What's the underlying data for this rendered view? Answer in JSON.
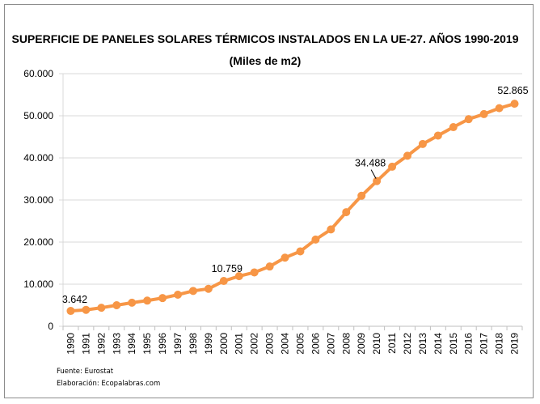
{
  "chart_data": {
    "type": "line",
    "title": "SUPERFICIE DE PANELES SOLARES TÉRMICOS INSTALADOS EN LA UE-27. AÑOS 1990-2019",
    "subtitle": "(Miles de m2)",
    "xlabel": "",
    "ylabel": "",
    "ylim": [
      0,
      60000
    ],
    "yticks": [
      0,
      10000,
      20000,
      30000,
      40000,
      50000,
      60000
    ],
    "ytick_labels": [
      "0",
      "10.000",
      "20.000",
      "30.000",
      "40.000",
      "50.000",
      "60.000"
    ],
    "grid": true,
    "legend": "none",
    "categories": [
      "1990",
      "1991",
      "1992",
      "1993",
      "1994",
      "1995",
      "1996",
      "1997",
      "1998",
      "1999",
      "2000",
      "2001",
      "2002",
      "2003",
      "2004",
      "2005",
      "2006",
      "2007",
      "2008",
      "2009",
      "2010",
      "2011",
      "2012",
      "2013",
      "2014",
      "2015",
      "2016",
      "2017",
      "2018",
      "2019"
    ],
    "series": [
      {
        "name": "Superficie (miles de m2)",
        "color": "#F79646",
        "values": [
          3642,
          3900,
          4400,
          5000,
          5600,
          6100,
          6700,
          7500,
          8400,
          8900,
          10759,
          11900,
          12800,
          14200,
          16300,
          17800,
          20600,
          23000,
          27100,
          31000,
          34488,
          37900,
          40500,
          43300,
          45300,
          47300,
          49200,
          50400,
          51800,
          52865
        ]
      }
    ],
    "annotations": [
      {
        "category": "1990",
        "text": "3.642"
      },
      {
        "category": "2000",
        "text": "10.759"
      },
      {
        "category": "2010",
        "text": "34.488",
        "leader_line": true
      },
      {
        "category": "2019",
        "text": "52.865"
      }
    ]
  },
  "footer": {
    "source": "Fuente: Eurostat",
    "credit": "Elaboración: Ecopalabras.com"
  }
}
